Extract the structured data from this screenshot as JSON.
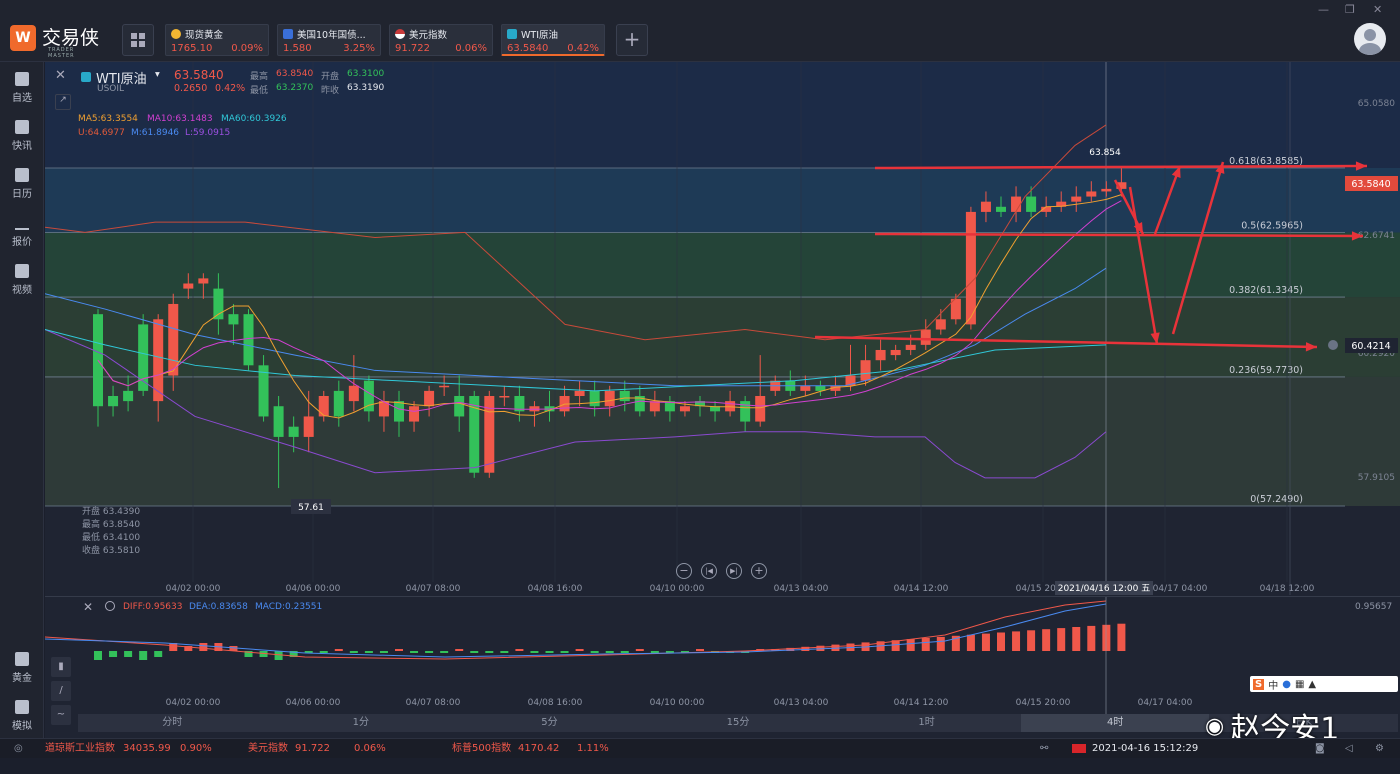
{
  "app": {
    "name": "交易侠",
    "subtitle": "TRADER MASTER"
  },
  "quote_tabs": [
    {
      "name": "现货黄金",
      "price": "1765.10",
      "change": "0.09%",
      "icon": "gold-coin-icon",
      "icon_color": "#f2b632"
    },
    {
      "name": "美国10年国债...",
      "price": "1.580",
      "change": "3.25%",
      "icon": "bar-chart-icon",
      "icon_color": "#3a6fd8"
    },
    {
      "name": "美元指数",
      "price": "91.722",
      "change": "0.06%",
      "icon": "us-flag-icon",
      "icon_color": "#c93a3a"
    },
    {
      "name": "WTI原油",
      "price": "63.5840",
      "change": "0.42%",
      "icon": "oil-icon",
      "icon_color": "#28a9c9"
    }
  ],
  "sidebar": [
    {
      "label": "自选",
      "icon": "bookmark-icon"
    },
    {
      "label": "快讯",
      "icon": "news-icon"
    },
    {
      "label": "日历",
      "icon": "calendar-icon"
    },
    {
      "label": "报价",
      "icon": "trend-icon"
    },
    {
      "label": "视频",
      "icon": "video-icon"
    },
    {
      "label": "黄金",
      "icon": "gold-icon"
    },
    {
      "label": "模拟",
      "icon": "wallet-icon"
    }
  ],
  "symbol": {
    "name": "WTI原油",
    "code": "USOIL",
    "price": "63.5840",
    "change": "0.2650",
    "change_pct": "0.42%",
    "high_label": "最高",
    "high": "63.8540",
    "open_label": "开盘",
    "open": "63.3100",
    "low_label": "最低",
    "low": "63.2370",
    "prev_label": "昨收",
    "prev": "63.3190"
  },
  "indicators": {
    "ma5": "MA5:63.3554",
    "ma10": "MA10:63.1483",
    "ma60": "MA60:60.3926",
    "u": "U:64.6977",
    "m": "M:61.8946",
    "l": "L:59.0915"
  },
  "ohlc_box": {
    "open": "开盘 63.4390",
    "high": "最高 63.8540",
    "low": "最低 63.4100",
    "close": "收盘 63.5810"
  },
  "fib_levels": [
    {
      "label": "0.618(63.8585)",
      "value": 63.8585
    },
    {
      "label": "0.5(62.5965)",
      "value": 62.5965
    },
    {
      "label": "0.382(61.3345)",
      "value": 61.3345
    },
    {
      "label": "0.236(59.7730)",
      "value": 59.773
    },
    {
      "label": "0(57.2490)",
      "value": 57.249
    }
  ],
  "price_axis": [
    "65.0580",
    "62.6741",
    "60.2920",
    "57.9105"
  ],
  "price_tags": {
    "current": "63.5840",
    "alert": "60.4214",
    "high_mark": "63.854",
    "low_mark": "57.61"
  },
  "x_labels": [
    "04/02 00:00",
    "04/06 00:00",
    "04/07 08:00",
    "04/08 16:00",
    "04/10 00:00",
    "04/13 04:00",
    "04/14 12:00",
    "04/15 20:00",
    "04/17 04:00",
    "04/18 12:00"
  ],
  "crosshair_time": "2021/04/16 12:00 五",
  "macd": {
    "diff": "DIFF:0.95633",
    "dea": "DEA:0.83658",
    "macd": "MACD:0.23551",
    "axis": "0.95657"
  },
  "timeframes": [
    "分时",
    "1分",
    "5分",
    "15分",
    "1时",
    "4时",
    "日K"
  ],
  "active_timeframe": "4时",
  "status": {
    "items": [
      {
        "name": "道琼斯工业指数",
        "value": "34035.99",
        "change": "0.90%"
      },
      {
        "name": "美元指数",
        "value": "91.722",
        "change": "0.06%"
      },
      {
        "name": "标普500指数",
        "value": "4170.42",
        "change": "1.11%"
      }
    ],
    "datetime": "2021-04-16 15:12:29"
  },
  "watermark": "赵今安1",
  "ime": "中"
}
